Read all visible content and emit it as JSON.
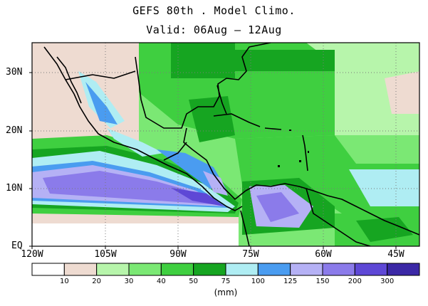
{
  "title_line1": "GEFS 80th . Model Climo.",
  "title_line2": "Valid: 06Aug — 12Aug",
  "lat_labels": [
    "30N",
    "20N",
    "10N",
    "EQ"
  ],
  "lon_labels": [
    "120W",
    "105W",
    "90W",
    "75W",
    "60W",
    "45W"
  ],
  "colorbar": {
    "colors": [
      "#ffffff",
      "#eedbd1",
      "#b7f5ab",
      "#7be874",
      "#3fcf40",
      "#16a521",
      "#afedf3",
      "#4a9cf0",
      "#b5b1f5",
      "#8b7bea",
      "#5e48d6",
      "#3b28a6"
    ],
    "labels": [
      "10",
      "20",
      "30",
      "40",
      "50",
      "75",
      "100",
      "125",
      "150",
      "200",
      "300"
    ],
    "units": "(mm)"
  }
}
